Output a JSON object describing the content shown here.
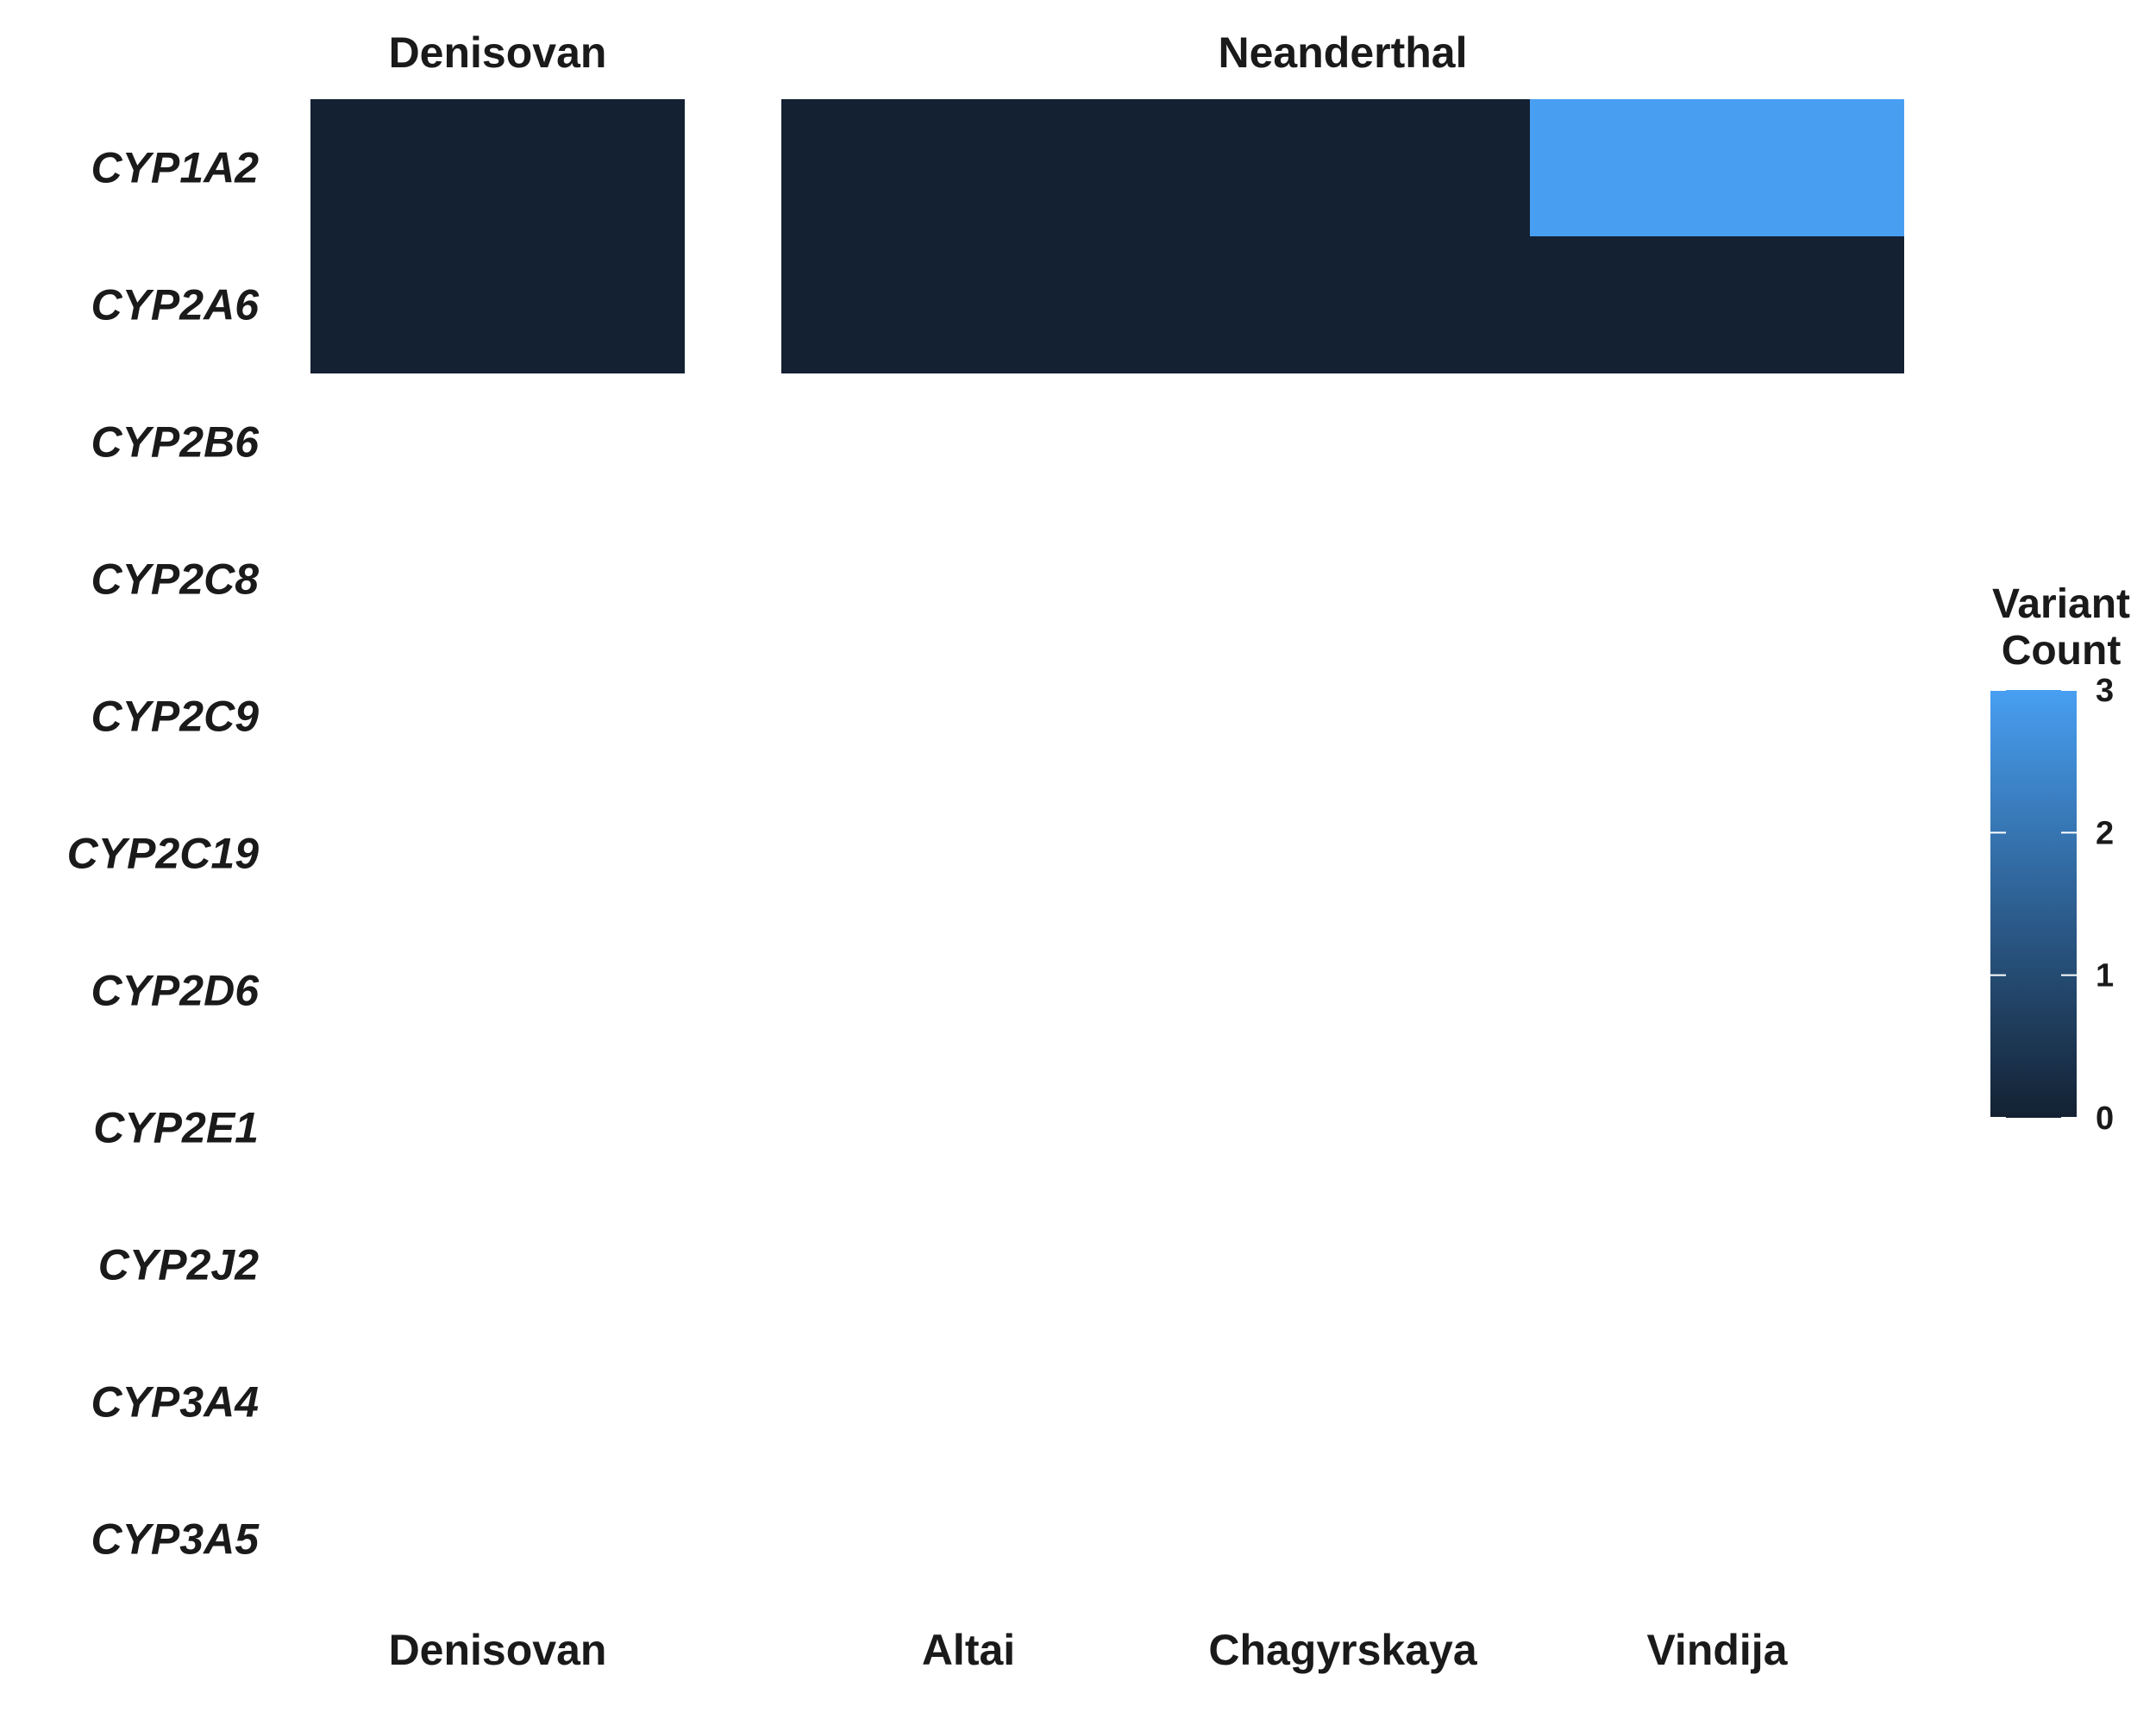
{
  "chart_data": {
    "type": "heatmap",
    "facets": [
      {
        "name": "Denisovan",
        "columns": [
          "Denisovan"
        ]
      },
      {
        "name": "Neanderthal",
        "columns": [
          "Altai",
          "Chagyrskaya",
          "Vindija"
        ]
      }
    ],
    "rows": [
      "CYP1A2",
      "CYP2A6",
      "CYP2B6",
      "CYP2C8",
      "CYP2C9",
      "CYP2C19",
      "CYP2D6",
      "CYP2E1",
      "CYP2J2",
      "CYP3A4",
      "CYP3A5"
    ],
    "cells": [
      {
        "row": "CYP1A2",
        "column": "Denisovan",
        "value": 0
      },
      {
        "row": "CYP2A6",
        "column": "Denisovan",
        "value": 0
      },
      {
        "row": "CYP1A2",
        "column": "Altai",
        "value": 0
      },
      {
        "row": "CYP2A6",
        "column": "Altai",
        "value": 0
      },
      {
        "row": "CYP1A2",
        "column": "Chagyrskaya",
        "value": 0
      },
      {
        "row": "CYP2A6",
        "column": "Chagyrskaya",
        "value": 0
      },
      {
        "row": "CYP1A2",
        "column": "Vindija",
        "value": 3
      },
      {
        "row": "CYP2A6",
        "column": "Vindija",
        "value": 0
      }
    ],
    "legend": {
      "title_lines": [
        "Variant",
        "Count"
      ],
      "ticks": [
        0,
        1,
        2,
        3
      ],
      "range": [
        0,
        3
      ],
      "low_color": "#132132",
      "high_color": "#489ff2",
      "placement": "right"
    }
  }
}
